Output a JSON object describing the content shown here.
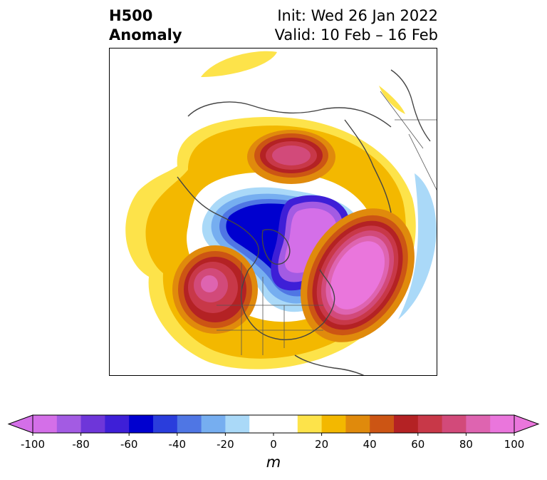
{
  "title": {
    "line1": "H500",
    "line2": "Anomaly"
  },
  "init": "Init: Wed 26 Jan 2022",
  "valid": "Valid: 10 Feb – 16 Feb",
  "colorbar": {
    "unit": "m",
    "ticks": [
      "-100",
      "-80",
      "-60",
      "-40",
      "-20",
      "0",
      "20",
      "40",
      "60",
      "80",
      "100"
    ],
    "levels": [
      -100,
      -90,
      -80,
      -70,
      -60,
      -50,
      -40,
      -30,
      -20,
      -10,
      10,
      20,
      30,
      40,
      50,
      60,
      70,
      80,
      90,
      100
    ],
    "colors": [
      "#d46fe8",
      "#a35be3",
      "#6e36d9",
      "#3e1fd7",
      "#0000cf",
      "#2a3ddc",
      "#4f76e4",
      "#76aef0",
      "#aad9f8",
      "#ffffff",
      "#fde34a",
      "#f3b800",
      "#e08a0c",
      "#cc5514",
      "#b42224",
      "#c83848",
      "#d24a7a",
      "#de64b0",
      "#ea76dc"
    ],
    "under_color": "#d46fe8",
    "over_color": "#ea76dc"
  }
}
